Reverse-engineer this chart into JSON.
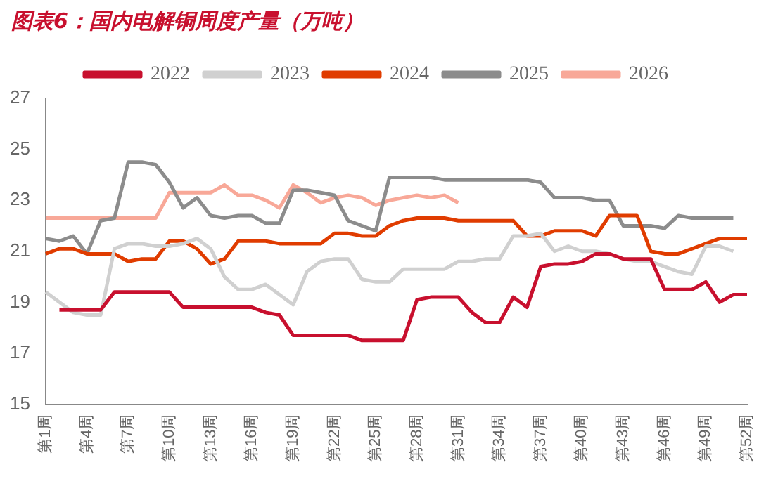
{
  "chart_data": {
    "type": "line",
    "title": "图表6：国内电解铜周度产量（万吨）",
    "categories": [
      "第1周",
      null,
      null,
      "第4周",
      null,
      null,
      "第7周",
      null,
      null,
      "第10周",
      null,
      null,
      "第13周",
      null,
      null,
      "第16周",
      null,
      null,
      "第19周",
      null,
      null,
      "第22周",
      null,
      null,
      "第25周",
      null,
      null,
      "第28周",
      null,
      null,
      "第31周",
      null,
      null,
      "第34周",
      null,
      null,
      "第37周",
      null,
      null,
      "第40周",
      null,
      null,
      "第43周",
      null,
      null,
      "第46周",
      null,
      null,
      "第49周",
      null,
      null,
      "第52周"
    ],
    "series": [
      {
        "name": "2022",
        "color": "#c8102e",
        "values": [
          null,
          18.7,
          18.7,
          18.7,
          18.7,
          19.4,
          19.4,
          19.4,
          19.4,
          19.4,
          18.8,
          18.8,
          18.8,
          18.8,
          18.8,
          18.8,
          18.6,
          18.5,
          17.7,
          17.7,
          17.7,
          17.7,
          17.7,
          17.5,
          17.5,
          17.5,
          17.5,
          19.1,
          19.2,
          19.2,
          19.2,
          18.6,
          18.2,
          18.2,
          19.2,
          18.8,
          20.4,
          20.5,
          20.5,
          20.6,
          20.9,
          20.9,
          20.7,
          20.7,
          20.7,
          19.5,
          19.5,
          19.5,
          19.8,
          19.0,
          19.3,
          19.3
        ]
      },
      {
        "name": "2023",
        "color": "#d0d0d0",
        "values": [
          19.4,
          19.0,
          18.6,
          18.5,
          18.5,
          21.1,
          21.3,
          21.3,
          21.2,
          21.2,
          21.3,
          21.5,
          21.1,
          20.0,
          19.5,
          19.5,
          19.7,
          19.3,
          18.9,
          20.2,
          20.6,
          20.7,
          20.7,
          19.9,
          19.8,
          19.8,
          20.3,
          20.3,
          20.3,
          20.3,
          20.6,
          20.6,
          20.7,
          20.7,
          21.6,
          21.6,
          21.7,
          21.0,
          21.2,
          21.0,
          21.0,
          20.9,
          20.7,
          20.6,
          20.6,
          20.4,
          20.2,
          20.1,
          21.2,
          21.2,
          21.0,
          null
        ]
      },
      {
        "name": "2024",
        "color": "#e03c00",
        "values": [
          20.9,
          21.1,
          21.1,
          20.9,
          20.9,
          20.9,
          20.6,
          20.7,
          20.7,
          21.4,
          21.4,
          21.1,
          20.5,
          20.7,
          21.4,
          21.4,
          21.4,
          21.3,
          21.3,
          21.3,
          21.3,
          21.7,
          21.7,
          21.6,
          21.6,
          22.0,
          22.2,
          22.3,
          22.3,
          22.3,
          22.2,
          22.2,
          22.2,
          22.2,
          22.2,
          21.6,
          21.6,
          21.8,
          21.8,
          21.8,
          21.6,
          22.4,
          22.4,
          22.4,
          21.0,
          20.9,
          20.9,
          21.1,
          21.3,
          21.5,
          21.5,
          21.5
        ]
      },
      {
        "name": "2025",
        "color": "#8c8c8c",
        "values": [
          21.5,
          21.4,
          21.6,
          20.9,
          22.2,
          22.3,
          24.5,
          24.5,
          24.4,
          23.7,
          22.7,
          23.1,
          22.4,
          22.3,
          22.4,
          22.4,
          22.1,
          22.1,
          23.4,
          23.4,
          23.3,
          23.2,
          22.2,
          22.0,
          21.8,
          23.9,
          23.9,
          23.9,
          23.9,
          23.8,
          23.8,
          23.8,
          23.8,
          23.8,
          23.8,
          23.8,
          23.7,
          23.1,
          23.1,
          23.1,
          23.0,
          23.0,
          22.0,
          22.0,
          22.0,
          21.9,
          22.4,
          22.3,
          22.3,
          22.3,
          22.3,
          null
        ]
      },
      {
        "name": "2026",
        "color": "#f8a898",
        "values": [
          22.3,
          22.3,
          22.3,
          22.3,
          22.3,
          22.3,
          22.3,
          22.3,
          22.3,
          23.3,
          23.3,
          23.3,
          23.3,
          23.6,
          23.2,
          23.2,
          23.0,
          22.7,
          23.6,
          23.3,
          22.9,
          23.1,
          23.2,
          23.1,
          22.8,
          23.0,
          23.1,
          23.2,
          23.1,
          23.2,
          22.9,
          null,
          null,
          null,
          null,
          null,
          null,
          null,
          null,
          null,
          null,
          null,
          null,
          null,
          null,
          null,
          null,
          null,
          null,
          null,
          null,
          null
        ]
      }
    ],
    "ylim": [
      15,
      27
    ],
    "yticks": [
      15,
      17,
      19,
      21,
      23,
      25,
      27
    ],
    "grid": false,
    "legend": "top",
    "marker": "none",
    "line_style": "solid"
  }
}
